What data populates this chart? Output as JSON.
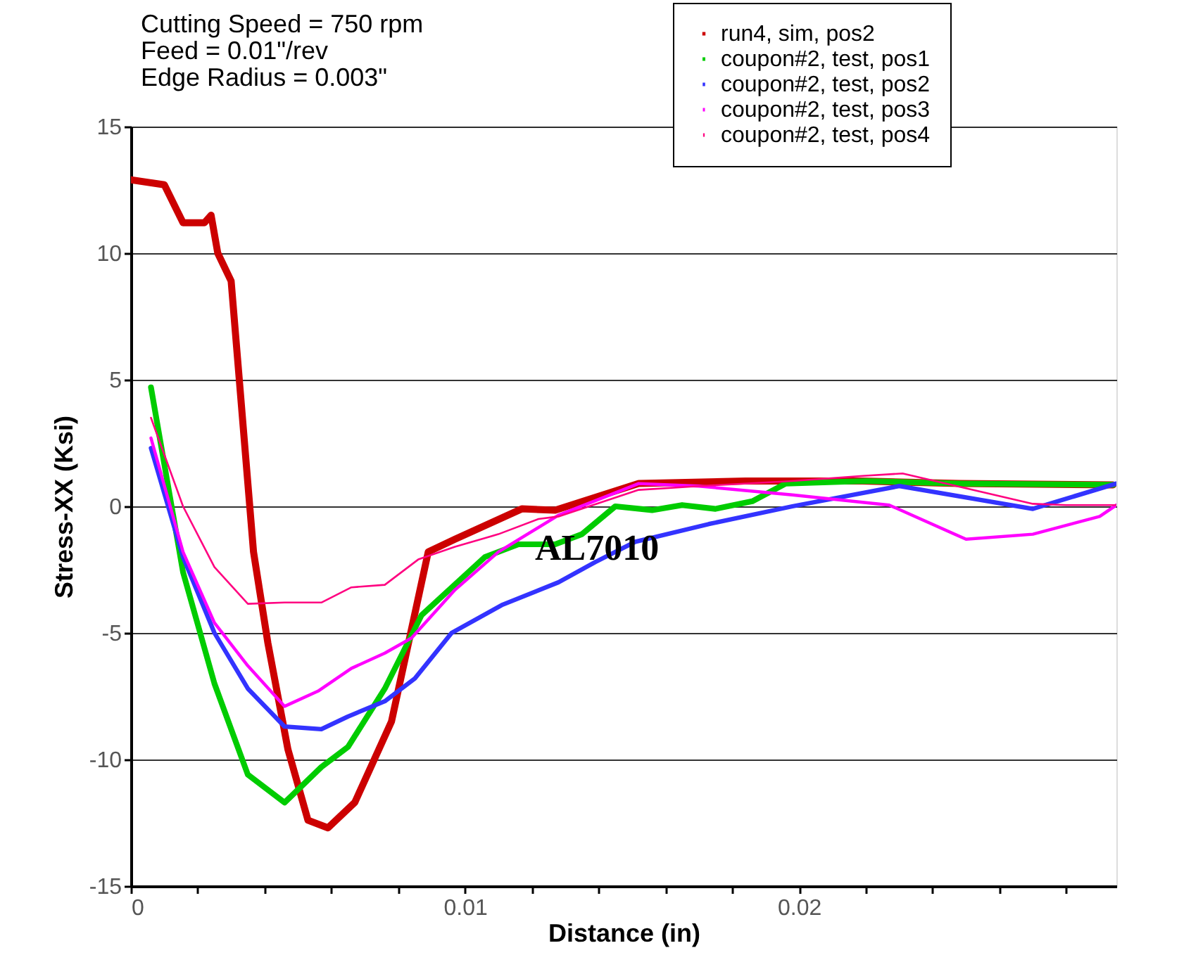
{
  "chart_data": {
    "type": "line",
    "xlabel": "Distance (in)",
    "ylabel": "Stress-XX (Ksi)",
    "annotations": [
      "Cutting Speed = 750 rpm",
      "Feed = 0.01\"/rev",
      "Edge Radius = 0.003\"",
      "AL7010"
    ],
    "xlim": [
      0,
      0.0295
    ],
    "ylim": [
      -15,
      15
    ],
    "xticks": [
      0,
      {
        "value": 0.002,
        "label": null
      },
      {
        "value": 0.004,
        "label": null
      },
      {
        "value": 0.006,
        "label": null
      },
      {
        "value": 0.008,
        "label": null
      },
      0.01,
      {
        "value": 0.012,
        "label": null
      },
      {
        "value": 0.014,
        "label": null
      },
      {
        "value": 0.016,
        "label": null
      },
      {
        "value": 0.018,
        "label": null
      },
      0.02,
      {
        "value": 0.022,
        "label": null
      },
      {
        "value": 0.024,
        "label": null
      },
      {
        "value": 0.026,
        "label": null
      },
      {
        "value": 0.028,
        "label": null
      }
    ],
    "yticks": [
      -15,
      -10,
      -5,
      0,
      5,
      10,
      15
    ],
    "grid": "y",
    "legend": "top right",
    "marker": "none",
    "line_style": "solid",
    "series": [
      {
        "name": "run4, sim, pos2",
        "color": "#cc0000",
        "x": [
          0,
          0.001,
          0.00156,
          0.0022,
          0.0024,
          0.0026,
          0.003,
          0.00367,
          0.0041,
          0.0047,
          0.0053,
          0.0059,
          0.0067,
          0.0078,
          0.0089,
          0.0097,
          0.0117,
          0.0127,
          0.0152,
          0.0184,
          0.0219,
          0.0248,
          0.0294
        ],
        "values": [
          12.9,
          12.7,
          11.2,
          11.2,
          11.5,
          10,
          8.9,
          -1.8,
          -5.4,
          -9.6,
          -12.4,
          -12.7,
          -11.7,
          -8.5,
          -1.8,
          -1.3,
          -0.1,
          -0.15,
          0.9,
          1.0,
          1.0,
          0.9,
          0.85
        ]
      },
      {
        "name": "coupon#2, test, pos1",
        "color": "#00cc00",
        "x": [
          0.0006,
          0.00156,
          0.0025,
          0.0035,
          0.0046,
          0.0057,
          0.0065,
          0.0076,
          0.0087,
          0.0106,
          0.0116,
          0.0127,
          0.0135,
          0.0145,
          0.0156,
          0.0165,
          0.0175,
          0.0186,
          0.0196,
          0.022,
          0.0248,
          0.0294
        ],
        "values": [
          4.7,
          -2.6,
          -7.0,
          -10.6,
          -11.7,
          -10.3,
          -9.5,
          -7.2,
          -4.3,
          -2.0,
          -1.5,
          -1.5,
          -1.1,
          0,
          -0.15,
          0.05,
          -0.1,
          0.2,
          0.9,
          1.0,
          0.9,
          0.85
        ]
      },
      {
        "name": "coupon#2, test, pos2",
        "color": "#3333ff",
        "x": [
          0.0006,
          0.00156,
          0.0025,
          0.0035,
          0.0046,
          0.0057,
          0.0065,
          0.0076,
          0.0085,
          0.0096,
          0.0111,
          0.0128,
          0.0139,
          0.0151,
          0.0173,
          0.0198,
          0.023,
          0.027,
          0.0295
        ],
        "values": [
          2.3,
          -2.0,
          -5.0,
          -7.2,
          -8.7,
          -8.8,
          -8.3,
          -7.7,
          -6.8,
          -5.0,
          -3.9,
          -3.0,
          -2.2,
          -1.4,
          -0.7,
          0,
          0.8,
          -0.1,
          0.9
        ]
      },
      {
        "name": "coupon#2, test, pos3",
        "color": "#ff00ff",
        "x": [
          0.0006,
          0.00156,
          0.0025,
          0.0035,
          0.0046,
          0.0056,
          0.0066,
          0.0076,
          0.0084,
          0.0097,
          0.011,
          0.0128,
          0.0152,
          0.017,
          0.0198,
          0.0227,
          0.025,
          0.027,
          0.029,
          0.0295
        ],
        "values": [
          2.7,
          -1.8,
          -4.6,
          -6.3,
          -7.9,
          -7.3,
          -6.4,
          -5.8,
          -5.2,
          -3.3,
          -1.8,
          -0.35,
          0.9,
          0.8,
          0.45,
          0.05,
          -1.3,
          -1.1,
          -0.4,
          0.05
        ]
      },
      {
        "name": "coupon#2, test, pos4",
        "color": "#ff0080",
        "x": [
          0.0006,
          0.00156,
          0.0025,
          0.0035,
          0.0046,
          0.0057,
          0.0066,
          0.0076,
          0.0086,
          0.0097,
          0.011,
          0.0122,
          0.0128,
          0.0152,
          0.017,
          0.0198,
          0.0219,
          0.0231,
          0.027,
          0.028,
          0.0295
        ],
        "values": [
          3.5,
          0,
          -2.4,
          -3.85,
          -3.8,
          -3.8,
          -3.2,
          -3.1,
          -2.1,
          -1.6,
          -1.1,
          -0.5,
          -0.4,
          0.65,
          0.8,
          1.0,
          1.2,
          1.3,
          0.1,
          0.05,
          0.05
        ]
      }
    ]
  }
}
